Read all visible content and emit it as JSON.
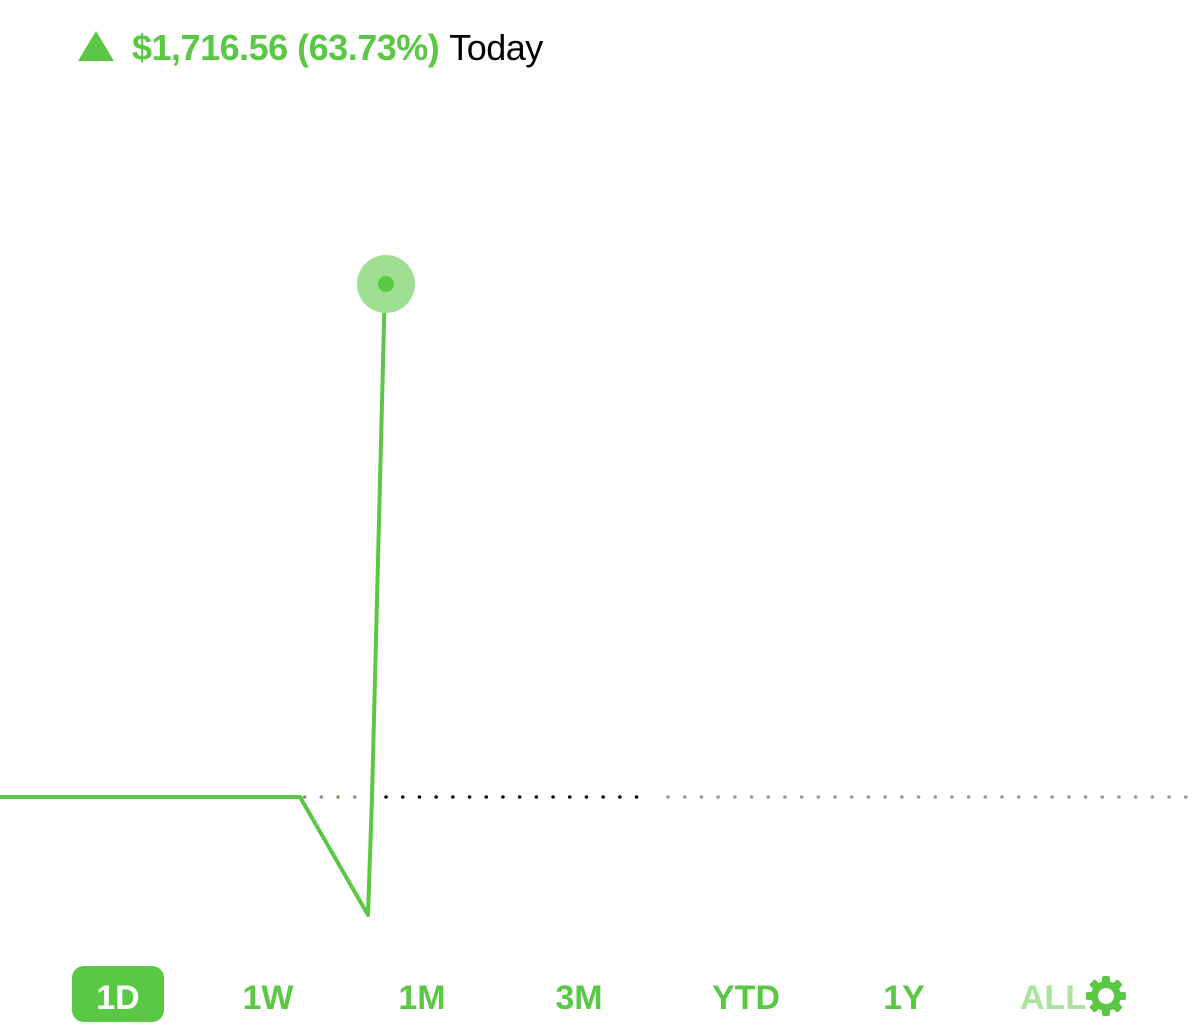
{
  "header": {
    "change_text": "$1,716.56 (63.73%)",
    "period_label": "Today",
    "arrow_icon": "up-triangle-icon"
  },
  "colors": {
    "accent": "#5ac845",
    "accent_light": "#a9e39d",
    "marker_halo": "#9fdf92"
  },
  "chart_data": {
    "type": "line",
    "title": "",
    "series": [
      {
        "values": [
          0,
          0,
          0,
          0,
          0,
          0,
          0,
          0,
          -0.23,
          0,
          1.0
        ]
      }
    ],
    "baseline": 0,
    "baseline_style": "dotted",
    "marker_on_last_point": true,
    "grid": false
  },
  "ranges": [
    {
      "label": "1D",
      "active": true
    },
    {
      "label": "1W",
      "active": false
    },
    {
      "label": "1M",
      "active": false
    },
    {
      "label": "3M",
      "active": false
    },
    {
      "label": "YTD",
      "active": false
    },
    {
      "label": "1Y",
      "active": false
    },
    {
      "label": "ALL",
      "active": false
    }
  ],
  "settings_icon": "gear-icon"
}
